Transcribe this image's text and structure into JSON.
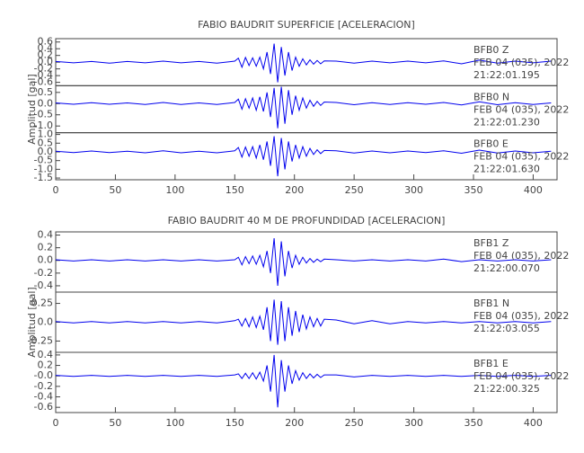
{
  "chart_data": [
    {
      "type": "line",
      "title": "FABIO BAUDRIT SUPERFICIE [ACELERACION]",
      "y_label": "Amplitud [gal]",
      "color": "#0000ee",
      "xlim": [
        0,
        420
      ],
      "xticks": [
        0,
        50,
        100,
        150,
        200,
        250,
        300,
        350,
        400
      ],
      "x": [
        0,
        15,
        30,
        45,
        60,
        75,
        90,
        105,
        120,
        135,
        150,
        153,
        156,
        159,
        162,
        165,
        168,
        171,
        174,
        177,
        180,
        183,
        186,
        189,
        192,
        195,
        198,
        201,
        204,
        207,
        210,
        213,
        216,
        219,
        222,
        225,
        235,
        250,
        265,
        280,
        295,
        310,
        325,
        340,
        355,
        370,
        385,
        400,
        415
      ],
      "series": [
        {
          "name": "BFB0 Z",
          "date": "FEB 04 (035), 2022",
          "time": "21:22:01.195",
          "ylim": [
            -0.7,
            0.7
          ],
          "yticks": [
            0.6,
            0.4,
            0.2,
            {
              "value": 0,
              "label": "0.0"
            },
            -0.2,
            -0.4,
            -0.6
          ],
          "values": [
            0.02,
            -0.02,
            0.02,
            -0.03,
            0.02,
            -0.02,
            0.03,
            -0.02,
            0.02,
            -0.03,
            0.03,
            0.12,
            -0.15,
            0.14,
            -0.1,
            0.13,
            -0.12,
            0.15,
            -0.2,
            0.3,
            -0.35,
            0.55,
            -0.6,
            0.45,
            -0.4,
            0.3,
            -0.25,
            0.15,
            -0.12,
            0.1,
            -0.08,
            0.07,
            -0.06,
            0.05,
            -0.05,
            0.04,
            0.03,
            -0.03,
            0.03,
            -0.02,
            0.03,
            -0.02,
            0.04,
            -0.05,
            0.06,
            -0.03,
            0.03,
            -0.02,
            0.03
          ]
        },
        {
          "name": "BFB0 N",
          "date": "FEB 04 (035), 2022",
          "time": "21:22:01.230",
          "ylim": [
            -1.3,
            0.8
          ],
          "yticks": [
            0.5,
            {
              "value": 0,
              "label": "0.0"
            },
            -0.5,
            {
              "value": -1,
              "label": "-1.0"
            }
          ],
          "values": [
            0.03,
            -0.03,
            0.04,
            -0.03,
            0.03,
            -0.04,
            0.05,
            -0.04,
            0.03,
            -0.04,
            0.05,
            0.2,
            -0.25,
            0.22,
            -0.2,
            0.25,
            -0.3,
            0.3,
            -0.35,
            0.5,
            -0.6,
            0.7,
            -1.1,
            0.75,
            -0.9,
            0.6,
            -0.5,
            0.35,
            -0.3,
            0.25,
            -0.2,
            0.15,
            -0.12,
            0.1,
            -0.08,
            0.07,
            0.05,
            -0.05,
            0.04,
            -0.04,
            0.04,
            -0.03,
            0.05,
            -0.06,
            0.08,
            -0.05,
            0.04,
            -0.04,
            0.03
          ]
        },
        {
          "name": "BFB0 E",
          "date": "FEB 04 (035), 2022",
          "time": "21:22:01.630",
          "ylim": [
            -1.6,
            1.1
          ],
          "yticks": [
            {
              "value": 1,
              "label": "1.0"
            },
            0.5,
            {
              "value": 0,
              "label": "0.0"
            },
            -0.5,
            {
              "value": -1,
              "label": "-1.0"
            },
            -1.5
          ],
          "values": [
            0.04,
            -0.04,
            0.05,
            -0.04,
            0.04,
            -0.05,
            0.06,
            -0.05,
            0.04,
            -0.05,
            0.06,
            0.25,
            -0.3,
            0.28,
            -0.25,
            0.3,
            -0.35,
            0.4,
            -0.45,
            0.6,
            -0.8,
            0.9,
            -1.4,
            0.8,
            -1.0,
            0.6,
            -0.55,
            0.4,
            -0.35,
            0.3,
            -0.25,
            0.2,
            -0.15,
            0.12,
            -0.1,
            0.08,
            0.06,
            -0.06,
            0.05,
            -0.05,
            0.05,
            -0.04,
            0.06,
            -0.08,
            0.1,
            -0.06,
            0.05,
            -0.05,
            0.04
          ]
        }
      ]
    },
    {
      "type": "line",
      "title": "FABIO BAUDRIT 40 M DE PROFUNDIDAD [ACELERACION]",
      "y_label": "Amplitud [gal]",
      "color": "#0000ee",
      "xlim": [
        0,
        420
      ],
      "xticks": [
        0,
        50,
        100,
        150,
        200,
        250,
        300,
        350,
        400
      ],
      "x": [
        0,
        15,
        30,
        45,
        60,
        75,
        90,
        105,
        120,
        135,
        150,
        153,
        156,
        159,
        162,
        165,
        168,
        171,
        174,
        177,
        180,
        183,
        186,
        189,
        192,
        195,
        198,
        201,
        204,
        207,
        210,
        213,
        216,
        219,
        222,
        225,
        235,
        250,
        265,
        280,
        295,
        310,
        325,
        340,
        355,
        370,
        385,
        400,
        415
      ],
      "series": [
        {
          "name": "BFB1 Z",
          "date": "FEB 04 (035), 2022",
          "time": "21:22:00.070",
          "ylim": [
            -0.5,
            0.45
          ],
          "yticks": [
            0.4,
            0.2,
            {
              "value": 0,
              "label": "0.0"
            },
            -0.2,
            -0.4
          ],
          "values": [
            0.01,
            -0.01,
            0.01,
            -0.01,
            0.01,
            -0.01,
            0.01,
            -0.01,
            0.01,
            -0.01,
            0.01,
            0.05,
            -0.07,
            0.06,
            -0.05,
            0.07,
            -0.06,
            0.08,
            -0.1,
            0.15,
            -0.2,
            0.35,
            -0.4,
            0.3,
            -0.25,
            0.15,
            -0.12,
            0.08,
            -0.06,
            0.05,
            -0.04,
            0.03,
            -0.03,
            0.02,
            -0.02,
            0.02,
            0.01,
            -0.01,
            0.01,
            -0.01,
            0.01,
            -0.01,
            0.02,
            -0.02,
            0.01,
            -0.01,
            0.01,
            -0.01,
            0.01
          ]
        },
        {
          "name": "BFB1 N",
          "date": "FEB 04 (035), 2022",
          "time": "21:22:03.055",
          "ylim": [
            -0.4,
            0.4
          ],
          "yticks": [
            0.25,
            {
              "value": 0,
              "label": "0.0"
            },
            -0.25
          ],
          "values": [
            0.01,
            -0.01,
            0.01,
            -0.01,
            0.01,
            -0.01,
            0.01,
            -0.01,
            0.01,
            -0.01,
            0.02,
            0.04,
            -0.05,
            0.05,
            -0.06,
            0.07,
            -0.07,
            0.08,
            -0.1,
            0.2,
            -0.25,
            0.3,
            -0.3,
            0.28,
            -0.25,
            0.2,
            -0.18,
            0.15,
            -0.13,
            0.1,
            -0.09,
            0.07,
            -0.06,
            0.05,
            -0.05,
            0.04,
            0.03,
            -0.02,
            0.02,
            -0.02,
            0.01,
            -0.01,
            0.01,
            -0.01,
            0.01,
            -0.01,
            0.01,
            -0.01,
            0.01
          ]
        },
        {
          "name": "BFB1 E",
          "date": "FEB 04 (035), 2022",
          "time": "21:22:00.325",
          "ylim": [
            -0.7,
            0.45
          ],
          "yticks": [
            0.4,
            0.2,
            {
              "value": 0,
              "label": "-0.0"
            },
            -0.2,
            -0.4,
            -0.6
          ],
          "values": [
            0.01,
            -0.01,
            0.01,
            -0.01,
            0.01,
            -0.01,
            0.01,
            -0.01,
            0.01,
            -0.01,
            0.02,
            0.04,
            -0.05,
            0.05,
            -0.05,
            0.06,
            -0.06,
            0.07,
            -0.1,
            0.2,
            -0.3,
            0.4,
            -0.6,
            0.3,
            -0.3,
            0.2,
            -0.15,
            0.1,
            -0.08,
            0.06,
            -0.05,
            0.04,
            -0.04,
            0.03,
            -0.03,
            0.02,
            0.02,
            -0.02,
            0.01,
            -0.01,
            0.01,
            -0.01,
            0.01,
            -0.01,
            0.01,
            -0.01,
            0.01,
            -0.01,
            0.01
          ]
        }
      ]
    }
  ]
}
